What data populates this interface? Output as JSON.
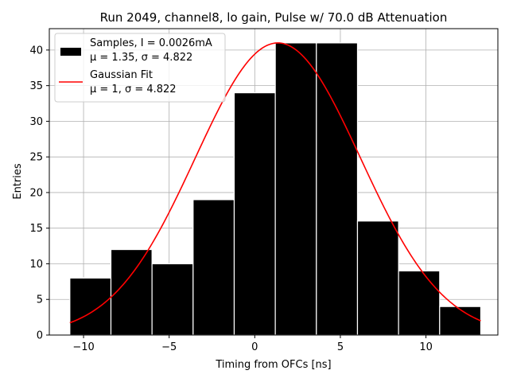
{
  "chart_data": {
    "type": "bar",
    "title": "Run 2049, channel8, lo gain, Pulse w/ 70.0 dB Attenuation",
    "xlabel": "Timing from OFCs [ns]",
    "ylabel": "Entries",
    "xlim": [
      -12,
      14.2
    ],
    "ylim": [
      0,
      43
    ],
    "grid": true,
    "x_ticks": [
      -10,
      -5,
      0,
      5,
      10
    ],
    "y_ticks": [
      0,
      5,
      10,
      15,
      20,
      25,
      30,
      35,
      40
    ],
    "histogram": {
      "name": "Samples",
      "bin_edges": [
        -10.8,
        -8.4,
        -6.0,
        -3.6,
        -1.2,
        1.2,
        3.6,
        6.0,
        8.4,
        10.8,
        13.2
      ],
      "counts": [
        8,
        12,
        10,
        19,
        34,
        41,
        41,
        16,
        9,
        4
      ],
      "color": "#000000"
    },
    "fit": {
      "name": "Gaussian Fit",
      "mu": 1.35,
      "sigma": 4.822,
      "amplitude": 41,
      "x_range": [
        -10.8,
        13.2
      ],
      "color": "#ff0000"
    },
    "legend": {
      "position": "top-left",
      "entries": [
        {
          "line1": "Samples, I = 0.0026mA",
          "line2": "μ = 1.35, σ = 4.822"
        },
        {
          "line1": "Gaussian Fit",
          "line2": "μ = 1, σ = 4.822"
        }
      ]
    }
  }
}
